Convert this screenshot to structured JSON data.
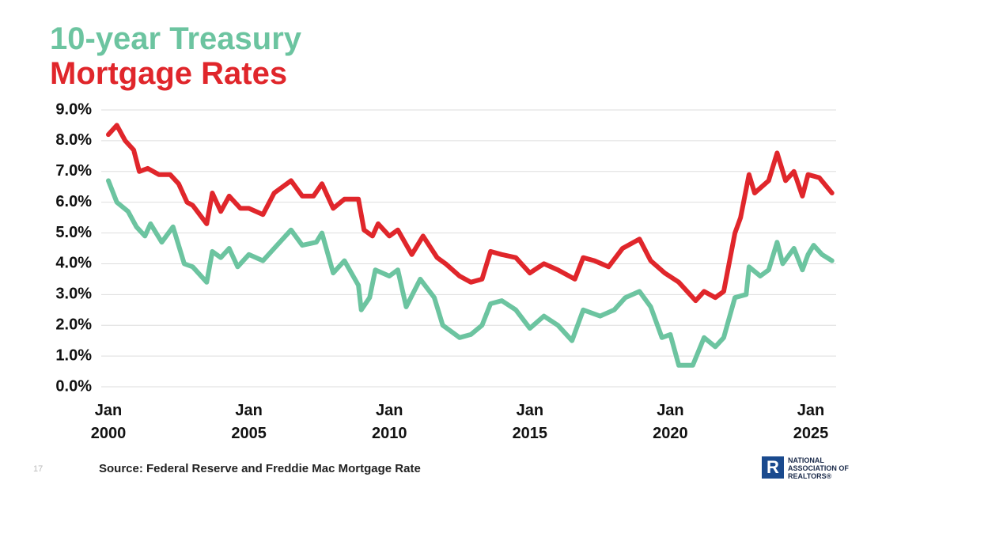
{
  "chart_data": {
    "type": "line",
    "ylim": [
      0,
      9
    ],
    "yticks": [
      {
        "value": 0,
        "label": "0.0%"
      },
      {
        "value": 1,
        "label": "1.0%"
      },
      {
        "value": 2,
        "label": "2.0%"
      },
      {
        "value": 3,
        "label": "3.0%"
      },
      {
        "value": 4,
        "label": "4.0%"
      },
      {
        "value": 5,
        "label": "5.0%"
      },
      {
        "value": 6,
        "label": "6.0%"
      },
      {
        "value": 7,
        "label": "7.0%"
      },
      {
        "value": 8,
        "label": "8.0%"
      },
      {
        "value": 9,
        "label": "9.0%"
      }
    ],
    "xlim": [
      2000,
      2025.9
    ],
    "xticks": [
      {
        "value": 2000,
        "label": "Jan 2000"
      },
      {
        "value": 2005,
        "label": "Jan 2005"
      },
      {
        "value": 2010,
        "label": "Jan 2010"
      },
      {
        "value": 2015,
        "label": "Jan 2015"
      },
      {
        "value": 2020,
        "label": "Jan 2020"
      },
      {
        "value": 2025,
        "label": "Jan 2025"
      }
    ],
    "grid": true,
    "series": [
      {
        "name": "10-year Treasury",
        "color": "#6cc4a0",
        "x": [
          2000.0,
          2000.3,
          2000.7,
          2001.0,
          2001.3,
          2001.5,
          2001.9,
          2002.3,
          2002.7,
          2003.0,
          2003.5,
          2003.7,
          2004.0,
          2004.3,
          2004.6,
          2005.0,
          2005.5,
          2005.9,
          2006.5,
          2006.9,
          2007.4,
          2007.6,
          2008.0,
          2008.4,
          2008.9,
          2009.0,
          2009.3,
          2009.5,
          2010.0,
          2010.3,
          2010.6,
          2011.1,
          2011.6,
          2011.9,
          2012.5,
          2012.9,
          2013.3,
          2013.6,
          2014.0,
          2014.5,
          2015.0,
          2015.5,
          2016.0,
          2016.5,
          2016.9,
          2017.5,
          2018.0,
          2018.4,
          2018.9,
          2019.3,
          2019.7,
          2020.0,
          2020.3,
          2020.8,
          2021.2,
          2021.6,
          2021.9,
          2022.3,
          2022.7,
          2022.8,
          2023.2,
          2023.5,
          2023.8,
          2024.0,
          2024.4,
          2024.7,
          2024.9,
          2025.1,
          2025.4,
          2025.75
        ],
        "values": [
          6.7,
          6.0,
          5.7,
          5.2,
          4.9,
          5.3,
          4.7,
          5.2,
          4.0,
          3.9,
          3.4,
          4.4,
          4.2,
          4.5,
          3.9,
          4.3,
          4.1,
          4.5,
          5.1,
          4.6,
          4.7,
          5.0,
          3.7,
          4.1,
          3.3,
          2.5,
          2.9,
          3.8,
          3.6,
          3.8,
          2.6,
          3.5,
          2.9,
          2.0,
          1.6,
          1.7,
          2.0,
          2.7,
          2.8,
          2.5,
          1.9,
          2.3,
          2.0,
          1.5,
          2.5,
          2.3,
          2.5,
          2.9,
          3.1,
          2.6,
          1.6,
          1.7,
          0.7,
          0.7,
          1.6,
          1.3,
          1.6,
          2.9,
          3.0,
          3.9,
          3.6,
          3.8,
          4.7,
          4.0,
          4.5,
          3.8,
          4.3,
          4.6,
          4.3,
          4.1
        ]
      },
      {
        "name": "Mortgage Rates",
        "color": "#e0262b",
        "x": [
          2000.0,
          2000.3,
          2000.6,
          2000.9,
          2001.1,
          2001.4,
          2001.8,
          2002.2,
          2002.5,
          2002.8,
          2003.0,
          2003.5,
          2003.7,
          2004.0,
          2004.3,
          2004.7,
          2005.0,
          2005.5,
          2005.9,
          2006.5,
          2006.9,
          2007.3,
          2007.6,
          2008.0,
          2008.4,
          2008.9,
          2009.1,
          2009.4,
          2009.6,
          2010.0,
          2010.3,
          2010.8,
          2011.2,
          2011.7,
          2012.0,
          2012.5,
          2012.9,
          2013.3,
          2013.6,
          2014.0,
          2014.5,
          2015.0,
          2015.5,
          2016.0,
          2016.6,
          2016.9,
          2017.3,
          2017.8,
          2018.3,
          2018.9,
          2019.3,
          2019.8,
          2020.3,
          2020.9,
          2021.2,
          2021.6,
          2021.9,
          2022.3,
          2022.5,
          2022.8,
          2023.0,
          2023.5,
          2023.8,
          2024.1,
          2024.4,
          2024.7,
          2024.9,
          2025.3,
          2025.75
        ],
        "values": [
          8.2,
          8.5,
          8.0,
          7.7,
          7.0,
          7.1,
          6.9,
          6.9,
          6.6,
          6.0,
          5.9,
          5.3,
          6.3,
          5.7,
          6.2,
          5.8,
          5.8,
          5.6,
          6.3,
          6.7,
          6.2,
          6.2,
          6.6,
          5.8,
          6.1,
          6.1,
          5.1,
          4.9,
          5.3,
          4.9,
          5.1,
          4.3,
          4.9,
          4.2,
          4.0,
          3.6,
          3.4,
          3.5,
          4.4,
          4.3,
          4.2,
          3.7,
          4.0,
          3.8,
          3.5,
          4.2,
          4.1,
          3.9,
          4.5,
          4.8,
          4.1,
          3.7,
          3.4,
          2.8,
          3.1,
          2.9,
          3.1,
          5.0,
          5.5,
          6.9,
          6.3,
          6.7,
          7.6,
          6.7,
          7.0,
          6.2,
          6.9,
          6.8,
          6.3
        ]
      }
    ]
  },
  "footer": {
    "page_number": "17",
    "source": "Source: Federal Reserve and Freddie Mac Mortgage Rate",
    "logo_mark": "R",
    "logo_lines": [
      "NATIONAL",
      "ASSOCIATION OF",
      "REALTORS®"
    ]
  }
}
